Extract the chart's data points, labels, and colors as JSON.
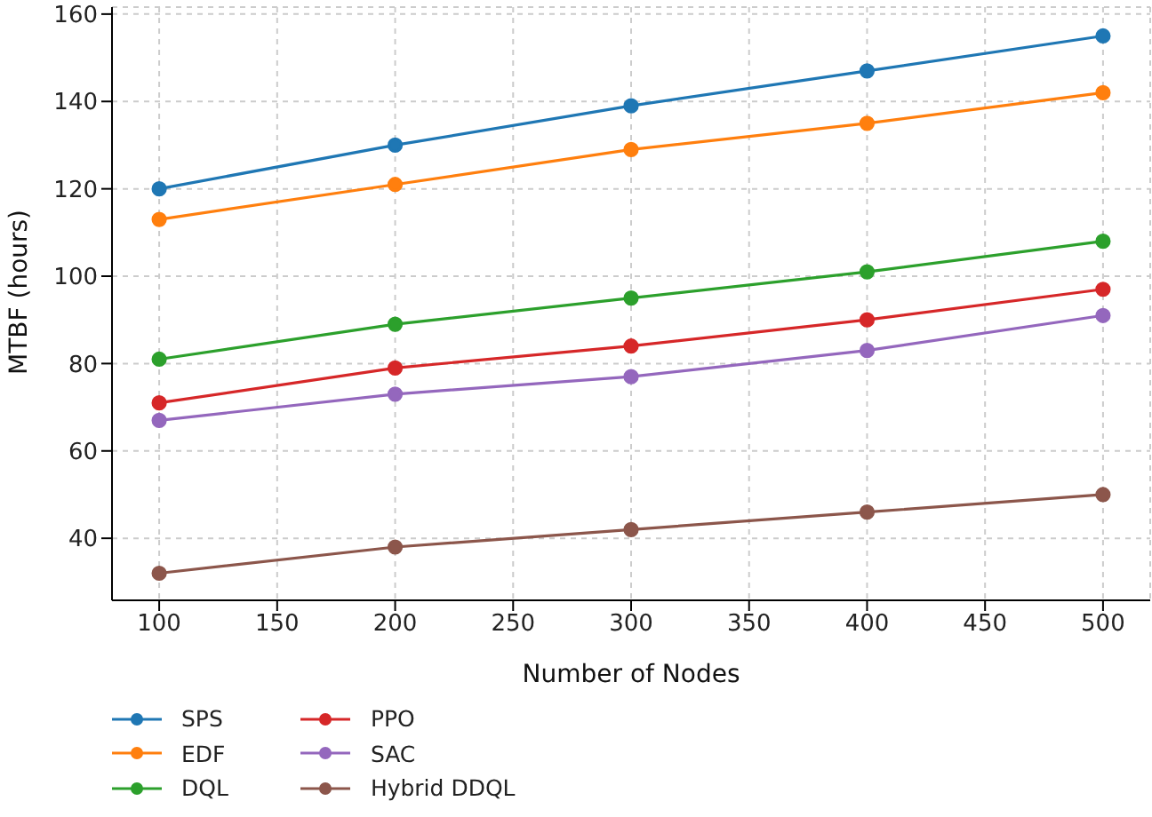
{
  "chart_data": {
    "type": "line",
    "xlabel": "Number of Nodes",
    "ylabel": "MTBF (hours)",
    "x": [
      100,
      200,
      300,
      400,
      500
    ],
    "series": [
      {
        "name": "SPS",
        "color": "#1f77b4",
        "values": [
          120,
          130,
          139,
          147,
          155
        ]
      },
      {
        "name": "EDF",
        "color": "#ff7f0e",
        "values": [
          113,
          121,
          129,
          135,
          142
        ]
      },
      {
        "name": "DQL",
        "color": "#2ca02c",
        "values": [
          81,
          89,
          95,
          101,
          108
        ]
      },
      {
        "name": "PPO",
        "color": "#d62728",
        "values": [
          71,
          79,
          84,
          90,
          97
        ]
      },
      {
        "name": "SAC",
        "color": "#9467bd",
        "values": [
          67,
          73,
          77,
          83,
          91
        ]
      },
      {
        "name": "Hybrid DDQL",
        "color": "#8c564b",
        "values": [
          32,
          38,
          42,
          46,
          50
        ]
      }
    ],
    "xlim": [
      80,
      520
    ],
    "xticks": [
      100,
      150,
      200,
      250,
      300,
      350,
      400,
      450,
      500
    ],
    "ylim": [
      25.8,
      161.6
    ],
    "yticks": [
      40,
      60,
      80,
      100,
      120,
      140,
      160
    ],
    "grid": true,
    "legend": "bottom",
    "marker": "circle",
    "line_style": "solid"
  }
}
